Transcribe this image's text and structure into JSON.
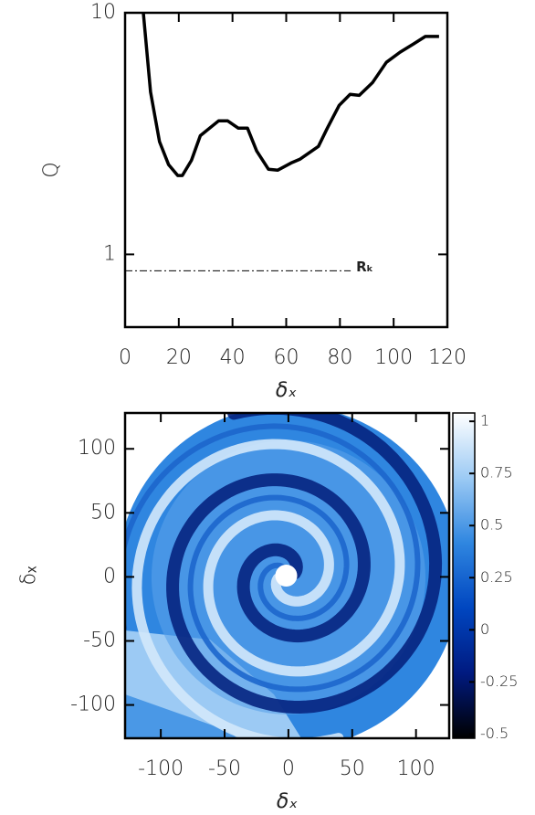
{
  "chart_data": [
    {
      "type": "line",
      "ylabel": "Q",
      "xlabel": "δₓ",
      "ylog": true,
      "xlim": [
        0,
        120
      ],
      "xticks": [
        0,
        20,
        40,
        60,
        80,
        100,
        120
      ],
      "ylim": [
        0.5,
        10
      ],
      "yticks": [
        1,
        10
      ],
      "color": "#000000",
      "x": [
        6.8,
        9.5,
        12.8,
        16.2,
        19.6,
        21.3,
        24.7,
        28,
        34.8,
        38.2,
        42.2,
        45.6,
        49,
        53.4,
        56.8,
        61.8,
        65.2,
        72,
        75.3,
        79.7,
        83.8,
        87.2,
        92.2,
        97.3,
        102.4,
        107.4,
        111.8,
        116.9
      ],
      "values": [
        10,
        4.7,
        2.93,
        2.35,
        2.12,
        2.12,
        2.45,
        3.1,
        3.57,
        3.57,
        3.33,
        3.33,
        2.68,
        2.25,
        2.23,
        2.39,
        2.48,
        2.8,
        3.33,
        4.14,
        4.6,
        4.55,
        5.15,
        6.24,
        6.87,
        7.43,
        7.98,
        7.98
      ],
      "reference_line": {
        "value": 0.855,
        "label": "Rₖ"
      }
    },
    {
      "type": "image",
      "xlabel": "δₓ",
      "ylabel": "δₓ",
      "xlim": [
        -128,
        126
      ],
      "xticks": [
        -100,
        -50,
        0,
        50,
        100
      ],
      "ylim": [
        -126,
        128
      ],
      "yticks": [
        -100,
        -50,
        0,
        50,
        100
      ],
      "colorbar": {
        "lim": [
          -0.52,
          1.04
        ],
        "ticks": [
          -0.5,
          -0.25,
          0,
          0.25,
          0.5,
          0.75,
          1
        ],
        "colors": [
          "#000000",
          "#001a80",
          "#0046c0",
          "#2f86e0",
          "#9ccaf4",
          "#ffffff"
        ]
      }
    }
  ]
}
